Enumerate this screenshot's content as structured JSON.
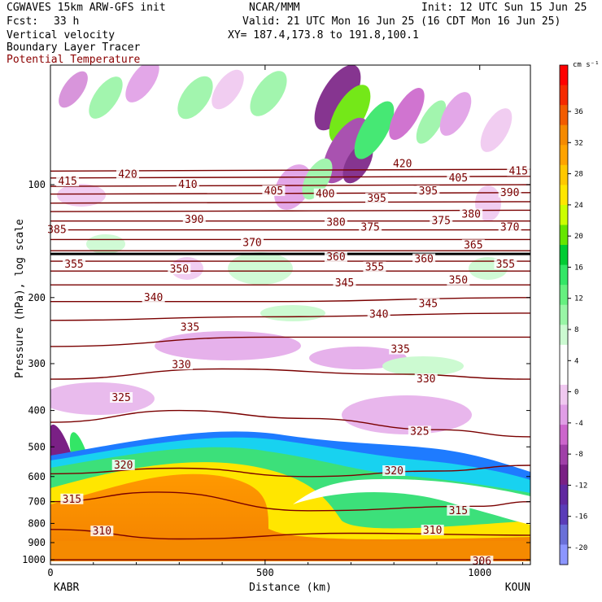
{
  "header": {
    "model": "CGWAVES 15km ARW-GFS init",
    "org": "NCAR/MMM",
    "init": "Init: 12 UTC Sun 15 Jun 25",
    "fcst_label": "Fcst:",
    "fcst_value": "33 h",
    "valid": "Valid: 21 UTC Mon 16 Jun 25 (16 CDT Mon 16 Jun 25)",
    "field1": "Vertical velocity",
    "field2": "Boundary Layer Tracer",
    "field3": "Potential Temperature",
    "xy": "XY= 187.4,173.8 to 191.8,100.1"
  },
  "colors": {
    "theta_contour": "#7a0000",
    "plot_border": "#000000"
  },
  "chart_data": {
    "type": "heatmap",
    "xlabel": "Distance (km)",
    "ylabel": "Pressure (hPa), log scale",
    "x_range": [
      0,
      1118
    ],
    "y_range_hpa": [
      1030,
      48
    ],
    "x_ticks": [
      0,
      500,
      1000
    ],
    "x_tick_labels": [
      "0",
      "500",
      "1000"
    ],
    "y_ticks": [
      100,
      200,
      300,
      400,
      500,
      600,
      700,
      800,
      900,
      1000
    ],
    "y_tick_labels": [
      "100",
      "200",
      "300",
      "400",
      "500",
      "600",
      "700",
      "800",
      "900",
      "1000"
    ],
    "endpoints": {
      "left": "KABR",
      "right": "KOUN"
    },
    "colorbar": {
      "units": "cm s⁻¹",
      "labels": [
        "36",
        "32",
        "28",
        "24",
        "20",
        "16",
        "12",
        "8",
        "4",
        "0",
        "-4",
        "-8",
        "-12",
        "-16",
        "-20"
      ],
      "colors": [
        "#ff0000",
        "#f52a00",
        "#f25c00",
        "#f58a00",
        "#ffa300",
        "#ffc800",
        "#ffe600",
        "#ccff00",
        "#66e600",
        "#00cc33",
        "#33e666",
        "#66f080",
        "#99f5a6",
        "#ccfad1",
        "#ffffff",
        "#ffffff",
        "#f0c8f0",
        "#e09ee6",
        "#cc66cc",
        "#a040a8",
        "#7a2085",
        "#6028a0",
        "#5a3cb8",
        "#6a70d8",
        "#8c96ff"
      ]
    },
    "theta_contours": [
      {
        "theta": 306,
        "p": [
          [
            0,
            1000
          ],
          [
            1118,
            1000
          ]
        ]
      },
      {
        "theta": 310,
        "p": [
          [
            0,
            830
          ],
          [
            300,
            880
          ],
          [
            700,
            850
          ],
          [
            1118,
            860
          ]
        ]
      },
      {
        "theta": 315,
        "p": [
          [
            0,
            700
          ],
          [
            250,
            660
          ],
          [
            600,
            740
          ],
          [
            1000,
            720
          ],
          [
            1118,
            700
          ]
        ]
      },
      {
        "theta": 320,
        "p": [
          [
            0,
            590
          ],
          [
            300,
            570
          ],
          [
            600,
            600
          ],
          [
            900,
            580
          ],
          [
            1118,
            560
          ]
        ]
      },
      {
        "theta": 325,
        "p": [
          [
            0,
            430
          ],
          [
            300,
            400
          ],
          [
            600,
            420
          ],
          [
            900,
            450
          ],
          [
            1118,
            470
          ]
        ]
      },
      {
        "theta": 330,
        "p": [
          [
            0,
            330
          ],
          [
            400,
            310
          ],
          [
            800,
            320
          ],
          [
            1118,
            330
          ]
        ]
      },
      {
        "theta": 335,
        "p": [
          [
            0,
            270
          ],
          [
            500,
            255
          ],
          [
            1118,
            255
          ]
        ]
      },
      {
        "theta": 340,
        "p": [
          [
            0,
            230
          ],
          [
            500,
            225
          ],
          [
            1118,
            220
          ]
        ]
      },
      {
        "theta": 345,
        "p": [
          [
            0,
            205
          ],
          [
            500,
            205
          ],
          [
            1118,
            200
          ]
        ]
      },
      {
        "theta": 350,
        "p": [
          [
            0,
            185
          ],
          [
            1118,
            185
          ]
        ]
      },
      {
        "theta": 355,
        "p": [
          [
            0,
            170
          ],
          [
            1118,
            170
          ]
        ]
      },
      {
        "theta": 360,
        "p": [
          [
            0,
            160
          ],
          [
            1118,
            160
          ]
        ]
      },
      {
        "theta": 370,
        "p": [
          [
            0,
            150
          ],
          [
            1118,
            150
          ]
        ]
      },
      {
        "theta": 380,
        "p": [
          [
            0,
            140
          ],
          [
            1118,
            140
          ]
        ]
      },
      {
        "theta": 385,
        "p": [
          [
            0,
            132
          ],
          [
            1118,
            132
          ]
        ]
      },
      {
        "theta": 390,
        "p": [
          [
            0,
            125
          ],
          [
            1118,
            125
          ]
        ]
      },
      {
        "theta": 395,
        "p": [
          [
            0,
            118
          ],
          [
            1118,
            117
          ]
        ]
      },
      {
        "theta": 400,
        "p": [
          [
            0,
            112
          ],
          [
            1118,
            111
          ]
        ]
      },
      {
        "theta": 405,
        "p": [
          [
            0,
            106
          ],
          [
            1118,
            105
          ]
        ]
      },
      {
        "theta": 410,
        "p": [
          [
            0,
            101
          ],
          [
            1118,
            100
          ]
        ]
      },
      {
        "theta": 415,
        "p": [
          [
            0,
            96
          ],
          [
            1118,
            95
          ]
        ]
      },
      {
        "theta": 420,
        "p": [
          [
            0,
            92
          ],
          [
            1118,
            91
          ]
        ]
      }
    ],
    "theta_labels": [
      {
        "text": "415",
        "x": 40,
        "p": 98
      },
      {
        "text": "420",
        "x": 180,
        "p": 94
      },
      {
        "text": "410",
        "x": 320,
        "p": 100
      },
      {
        "text": "405",
        "x": 520,
        "p": 104
      },
      {
        "text": "400",
        "x": 640,
        "p": 106
      },
      {
        "text": "395",
        "x": 760,
        "p": 109
      },
      {
        "text": "420",
        "x": 820,
        "p": 88
      },
      {
        "text": "405",
        "x": 950,
        "p": 96
      },
      {
        "text": "395",
        "x": 880,
        "p": 104
      },
      {
        "text": "415",
        "x": 1090,
        "p": 92
      },
      {
        "text": "390",
        "x": 1070,
        "p": 105
      },
      {
        "text": "385",
        "x": 15,
        "p": 132
      },
      {
        "text": "390",
        "x": 335,
        "p": 124
      },
      {
        "text": "380",
        "x": 665,
        "p": 126
      },
      {
        "text": "375",
        "x": 745,
        "p": 130
      },
      {
        "text": "375",
        "x": 910,
        "p": 125
      },
      {
        "text": "380",
        "x": 980,
        "p": 120
      },
      {
        "text": "370",
        "x": 1070,
        "p": 130
      },
      {
        "text": "370",
        "x": 470,
        "p": 143
      },
      {
        "text": "365",
        "x": 985,
        "p": 145
      },
      {
        "text": "355",
        "x": 55,
        "p": 163
      },
      {
        "text": "350",
        "x": 300,
        "p": 168
      },
      {
        "text": "360",
        "x": 665,
        "p": 156
      },
      {
        "text": "355",
        "x": 755,
        "p": 166
      },
      {
        "text": "360",
        "x": 870,
        "p": 158
      },
      {
        "text": "355",
        "x": 1060,
        "p": 163
      },
      {
        "text": "350",
        "x": 950,
        "p": 180
      },
      {
        "text": "340",
        "x": 240,
        "p": 200
      },
      {
        "text": "345",
        "x": 685,
        "p": 183
      },
      {
        "text": "345",
        "x": 880,
        "p": 208
      },
      {
        "text": "340",
        "x": 765,
        "p": 222
      },
      {
        "text": "335",
        "x": 325,
        "p": 240
      },
      {
        "text": "335",
        "x": 815,
        "p": 275
      },
      {
        "text": "330",
        "x": 305,
        "p": 302
      },
      {
        "text": "330",
        "x": 875,
        "p": 330
      },
      {
        "text": "325",
        "x": 165,
        "p": 370
      },
      {
        "text": "325",
        "x": 860,
        "p": 455
      },
      {
        "text": "320",
        "x": 170,
        "p": 560
      },
      {
        "text": "320",
        "x": 800,
        "p": 580
      },
      {
        "text": "315",
        "x": 50,
        "p": 690
      },
      {
        "text": "315",
        "x": 950,
        "p": 740
      },
      {
        "text": "310",
        "x": 120,
        "p": 840
      },
      {
        "text": "310",
        "x": 890,
        "p": 835
      },
      {
        "text": "306",
        "x": 1005,
        "p": 1010
      }
    ],
    "thick_line_hpa": 153,
    "tracer_extent": "surface to ~400 hPa",
    "vertical_velocity_note": "alternating up/down wave bands above 200 hPa"
  }
}
